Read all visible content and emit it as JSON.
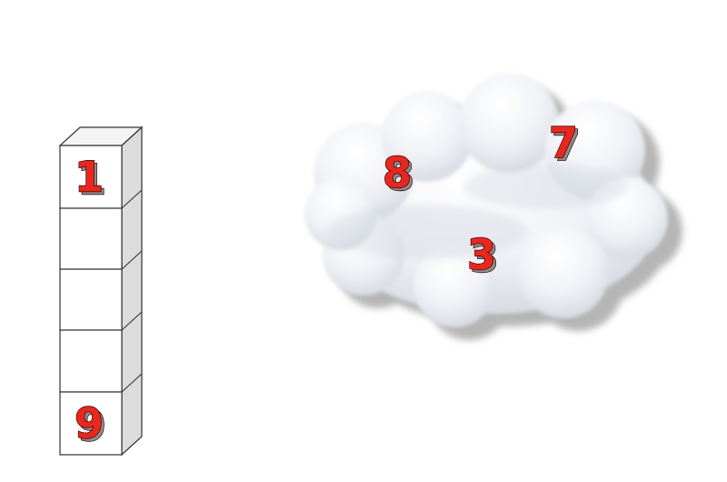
{
  "colors": {
    "digit_fill": "#e8281e",
    "digit_outline": "#3a0000",
    "digit_shadow": "#8c8c8c",
    "box_front": "#ffffff",
    "box_top": "#f4f4f4",
    "box_side": "#dcdcdc",
    "box_stroke": "#333333",
    "cloud_base": "#f1f3f7",
    "cloud_shade": "#cfd3dd",
    "cloud_shadow": "#b5b5b5"
  },
  "stack": {
    "cells": [
      "1",
      "",
      "",
      "",
      "9"
    ]
  },
  "cloud": {
    "numbers": [
      "8",
      "7",
      "3"
    ]
  }
}
